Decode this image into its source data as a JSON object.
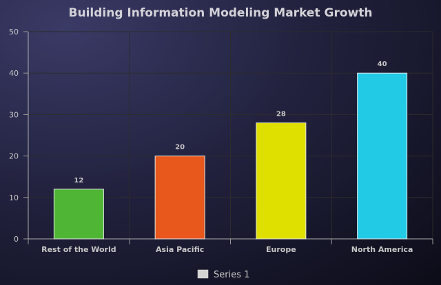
{
  "chart_data": {
    "type": "bar",
    "title": "Building Information Modeling Market Growth",
    "categories": [
      "Rest of the World",
      "Asia Pacific",
      "Europe",
      "North America"
    ],
    "series": [
      {
        "name": "Series 1",
        "values": [
          12,
          20,
          28,
          40
        ]
      }
    ],
    "bar_colors": [
      "#4fb535",
      "#e8571c",
      "#dfdf00",
      "#22cae6"
    ],
    "legend_swatch_color": "#d4d4d4",
    "xlabel": "",
    "ylabel": "",
    "ylim": [
      0,
      50
    ],
    "yticks": [
      0,
      10,
      20,
      30,
      40,
      50
    ],
    "grid": true,
    "legend_position": "bottom",
    "data_labels": true
  }
}
